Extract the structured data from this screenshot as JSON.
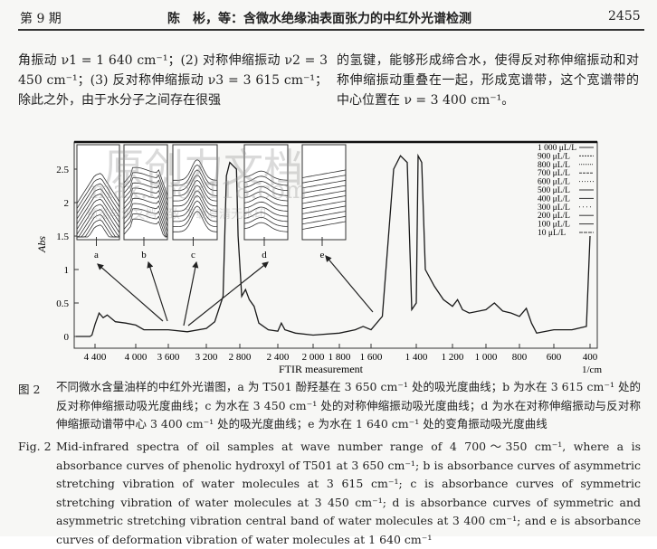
{
  "header": {
    "issue": "第 9 期",
    "title": "陈　彬，等：含微水绝缘油表面张力的中红外光谱检测",
    "page": "2455"
  },
  "body": {
    "left": "角振动 ν1 = 1 640 cm⁻¹；(2) 对称伸缩振动 ν2 = 3 450 cm⁻¹；(3) 反对称伸缩振动 ν3 = 3 615 cm⁻¹；除此之外，由于水分子之间存在很强",
    "right": "的氢键，能够形成缔合水，使得反对称伸缩振动和对称伸缩振动重叠在一起，形成宽谱带，这个宽谱带的中心位置在 ν = 3 400 cm⁻¹。"
  },
  "chart_data": {
    "type": "line",
    "xlabel": "FTIR measurement",
    "xunit": "1/cm",
    "ylabel": "Abs",
    "x_reversed": true,
    "xticks": [
      "4 400",
      "4 000",
      "3 600",
      "3 200",
      "2 800",
      "2 400",
      "2 000",
      "1 800",
      "1 600",
      "1 400",
      "1 200",
      "1 000",
      "800",
      "600",
      "400"
    ],
    "yticks": [
      "0",
      "0.5",
      "1",
      "1.5",
      "2",
      "2.5"
    ],
    "ylim": [
      -0.1,
      2.9
    ],
    "legend_placement": "top-right",
    "legend": [
      "1 000 μL/L",
      "900 μL/L",
      "800 μL/L",
      "700 μL/L",
      "600 μL/L",
      "500 μL/L",
      "400 μL/L",
      "300 μL/L",
      "200 μL/L",
      "100 μL/L",
      "10 μL/L"
    ],
    "inset_labels": [
      "a",
      "b",
      "c",
      "d",
      "e"
    ],
    "series": [
      {
        "x": [
          4700,
          4450,
          4430,
          4400,
          4360,
          4320,
          4280,
          4200,
          4100,
          4000,
          3900,
          3800,
          3600,
          3400,
          3200,
          3100,
          3000,
          2960,
          2920,
          2880,
          2840,
          2820,
          2780,
          2740,
          2700,
          2650,
          2600,
          2500,
          2400,
          2360,
          2320,
          2200,
          2000,
          1800,
          1700,
          1650,
          1600,
          1550,
          1500,
          1470,
          1440,
          1420,
          1400,
          1390,
          1370,
          1350,
          1300,
          1250,
          1200,
          1170,
          1140,
          1100,
          1000,
          950,
          900,
          850,
          800,
          760,
          730,
          700,
          600,
          500,
          420,
          400
        ],
        "y": [
          0,
          0,
          0.02,
          0.18,
          0.35,
          0.28,
          0.32,
          0.22,
          0.2,
          0.17,
          0.1,
          0.1,
          0.1,
          0.07,
          0.12,
          0.22,
          0.6,
          2.4,
          2.6,
          2.55,
          2.5,
          1.5,
          0.6,
          0.7,
          0.55,
          0.45,
          0.2,
          0.1,
          0.08,
          0.2,
          0.1,
          0.05,
          0.02,
          0.05,
          0.1,
          0.15,
          0.1,
          0.3,
          2.5,
          2.7,
          2.6,
          0.4,
          0.5,
          2.7,
          2.6,
          1.0,
          0.75,
          0.55,
          0.45,
          0.55,
          0.4,
          0.35,
          0.4,
          0.5,
          0.38,
          0.35,
          0.3,
          0.42,
          0.2,
          0.05,
          0.1,
          0.1,
          0.15,
          1.5
        ]
      }
    ]
  },
  "caption": {
    "cn_num": "图 2",
    "cn": "不同微水含量油样的中红外光谱图，a 为 T501 酚羟基在 3 650 cm⁻¹ 处的吸光度曲线；b 为水在 3 615 cm⁻¹ 处的反对称伸缩振动吸光度曲线；c 为水在 3 450 cm⁻¹ 处的对称伸缩振动吸光度曲线；d 为水在对称伸缩振动与反对称伸缩振动谱带中心 3 400 cm⁻¹ 处的吸光度曲线；e 为水在 1 640 cm⁻¹ 处的变角振动吸光度曲线",
    "en_num": "Fig. 2",
    "en": "Mid-infrared spectra of oil samples at wave number range of 4 700～350 cm⁻¹, where a is absorbance curves of phenolic hydroxyl of T501 at 3 650 cm⁻¹; b is absorbance curves of asymmetric stretching vibration of water molecules at 3 615 cm⁻¹; c is absorbance curves of symmetric stretching vibration of water molecules at 3 450 cm⁻¹; d is absorbance curves of symmetric and asymmetric stretching vibration central band of water molecules at 3 400 cm⁻¹; and e is absorbance curves of deformation vibration of water molecules at 1 640 cm⁻¹"
  },
  "watermark": {
    "brand": "原创力文档",
    "url": "max.book118.com",
    "note": "预览与源文档一致 下载高清无水印"
  },
  "colors": {
    "ink": "#222222",
    "paper": "#f7f7f5"
  }
}
